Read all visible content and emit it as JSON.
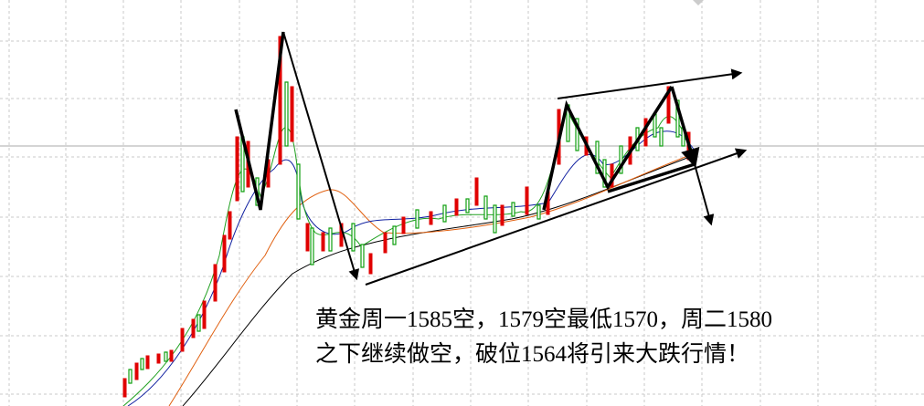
{
  "annotation": {
    "lines": [
      "黄金周一1585空，1579空最低1570，周二1580",
      "之下继续做空，破位1564将引来大跌行情！"
    ]
  }
}
